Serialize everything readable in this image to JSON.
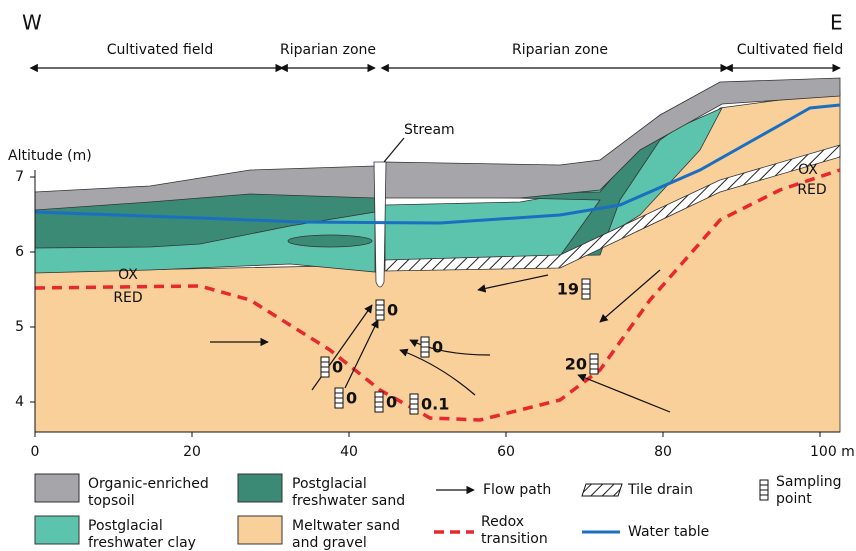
{
  "compass": {
    "west": "W",
    "east": "E"
  },
  "zones": [
    "Cultivated field",
    "Riparian zone",
    "Riparian zone",
    "Cultivated field"
  ],
  "stream_label": "Stream",
  "y_axis": {
    "label": "Altitude (m)",
    "ticks": [
      4,
      5,
      6,
      7
    ]
  },
  "x_axis": {
    "ticks": [
      0,
      20,
      40,
      60,
      80,
      {
        "value": 100,
        "label": "100 m"
      }
    ]
  },
  "redox_labels": [
    {
      "ox": "OX",
      "red": "RED"
    },
    {
      "ox": "OX",
      "red": "RED"
    }
  ],
  "sampling_points": [
    0,
    0,
    0,
    0,
    0,
    0.1,
    19,
    20
  ],
  "legend": [
    {
      "lines": [
        "Organic-enriched",
        "topsoil"
      ]
    },
    {
      "lines": [
        "Postglacial",
        "freshwater clay"
      ]
    },
    {
      "lines": [
        "Postglacial",
        "freshwater sand"
      ]
    },
    {
      "lines": [
        "Meltwater sand",
        "and gravel"
      ]
    },
    {
      "lines": [
        "Flow path"
      ]
    },
    {
      "lines": [
        "Redox",
        "transition"
      ]
    },
    {
      "lines": [
        "Tile drain"
      ]
    },
    {
      "lines": [
        "Water table"
      ]
    },
    {
      "lines": [
        "Sampling",
        "point"
      ]
    }
  ]
}
